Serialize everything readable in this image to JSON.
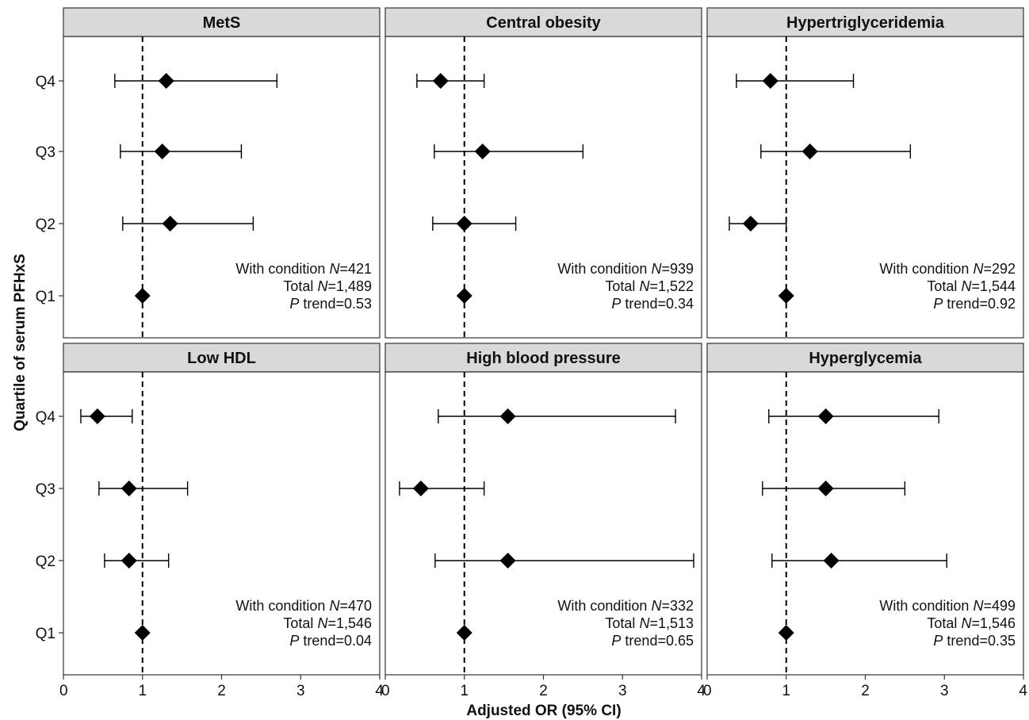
{
  "chart_data": {
    "type": "scatter",
    "subtype": "forest-plot-facets",
    "xlabel": "Adjusted OR (95% CI)",
    "ylabel": "Quartile of serum PFHxS",
    "xlim": [
      0,
      4
    ],
    "xticks": [
      "0",
      "1",
      "2",
      "3",
      "4"
    ],
    "categories": [
      "Q4",
      "Q3",
      "Q2",
      "Q1"
    ],
    "reference_line": 1,
    "grid": false,
    "marker": "diamond",
    "panels": [
      {
        "title": "MetS",
        "points": [
          {
            "q": "Q4",
            "or": 1.3,
            "lo": 0.65,
            "hi": 2.7
          },
          {
            "q": "Q3",
            "or": 1.25,
            "lo": 0.72,
            "hi": 2.25
          },
          {
            "q": "Q2",
            "or": 1.35,
            "lo": 0.75,
            "hi": 2.4
          },
          {
            "q": "Q1",
            "or": 1.0
          }
        ],
        "annotation": {
          "cond_prefix": "With condition ",
          "n_label": "N",
          "cond_value": "=421",
          "total_prefix": "Total ",
          "total_value": "=1,489",
          "p_label": "P",
          "p_value": " trend=0.53"
        }
      },
      {
        "title": "Central obesity",
        "points": [
          {
            "q": "Q4",
            "or": 0.7,
            "lo": 0.4,
            "hi": 1.25
          },
          {
            "q": "Q3",
            "or": 1.23,
            "lo": 0.62,
            "hi": 2.5
          },
          {
            "q": "Q2",
            "or": 1.0,
            "lo": 0.6,
            "hi": 1.65
          },
          {
            "q": "Q1",
            "or": 1.0
          }
        ],
        "annotation": {
          "cond_prefix": "With condition ",
          "n_label": "N",
          "cond_value": "=939",
          "total_prefix": "Total ",
          "total_value": "=1,522",
          "p_label": "P",
          "p_value": " trend=0.34"
        }
      },
      {
        "title": "Hypertriglyceridemia",
        "points": [
          {
            "q": "Q4",
            "or": 0.8,
            "lo": 0.37,
            "hi": 1.85
          },
          {
            "q": "Q3",
            "or": 1.3,
            "lo": 0.68,
            "hi": 2.57
          },
          {
            "q": "Q2",
            "or": 0.55,
            "lo": 0.28,
            "hi": 1.0
          },
          {
            "q": "Q1",
            "or": 1.0
          }
        ],
        "annotation": {
          "cond_prefix": "With condition ",
          "n_label": "N",
          "cond_value": "=292",
          "total_prefix": "Total ",
          "total_value": "=1,544",
          "p_label": "P",
          "p_value": " trend=0.92"
        }
      },
      {
        "title": "Low HDL",
        "points": [
          {
            "q": "Q4",
            "or": 0.43,
            "lo": 0.22,
            "hi": 0.87
          },
          {
            "q": "Q3",
            "or": 0.83,
            "lo": 0.45,
            "hi": 1.57
          },
          {
            "q": "Q2",
            "or": 0.83,
            "lo": 0.52,
            "hi": 1.33
          },
          {
            "q": "Q1",
            "or": 1.0
          }
        ],
        "annotation": {
          "cond_prefix": "With condition ",
          "n_label": "N",
          "cond_value": "=470",
          "total_prefix": "Total ",
          "total_value": "=1,546",
          "p_label": "P",
          "p_value": " trend=0.04"
        }
      },
      {
        "title": "High blood pressure",
        "points": [
          {
            "q": "Q4",
            "or": 1.55,
            "lo": 0.67,
            "hi": 3.67
          },
          {
            "q": "Q3",
            "or": 0.45,
            "lo": 0.18,
            "hi": 1.25
          },
          {
            "q": "Q2",
            "or": 1.55,
            "lo": 0.63,
            "hi": 3.9
          },
          {
            "q": "Q1",
            "or": 1.0
          }
        ],
        "annotation": {
          "cond_prefix": "With condition ",
          "n_label": "N",
          "cond_value": "=332",
          "total_prefix": "Total ",
          "total_value": "=1,513",
          "p_label": "P",
          "p_value": " trend=0.65"
        }
      },
      {
        "title": "Hyperglycemia",
        "points": [
          {
            "q": "Q4",
            "or": 1.5,
            "lo": 0.78,
            "hi": 2.93
          },
          {
            "q": "Q3",
            "or": 1.5,
            "lo": 0.7,
            "hi": 2.5
          },
          {
            "q": "Q2",
            "or": 1.57,
            "lo": 0.82,
            "hi": 3.03
          },
          {
            "q": "Q1",
            "or": 1.0
          }
        ],
        "annotation": {
          "cond_prefix": "With condition ",
          "n_label": "N",
          "cond_value": "=499",
          "total_prefix": "Total ",
          "total_value": "=1,546",
          "p_label": "P",
          "p_value": " trend=0.35"
        }
      }
    ]
  },
  "colors": {
    "strip_fill": "#d9d9d9",
    "frame": "#333333",
    "marker": "#000000",
    "text": "#111111"
  }
}
